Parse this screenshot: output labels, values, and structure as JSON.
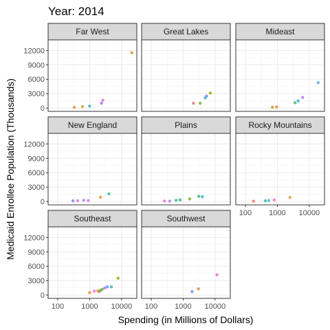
{
  "chart_data": {
    "type": "scatter",
    "title": "Year: 2014",
    "xlabel": "Spending (in Millions of Dollars)",
    "ylabel": "Medicaid Enrollee Population (Thousands)",
    "x_scale": "log10",
    "xlim": [
      50,
      30000
    ],
    "ylim": [
      -700,
      14200
    ],
    "x_ticks": [
      100,
      1000,
      10000
    ],
    "x_tick_labels": [
      "100",
      "1000",
      "10000"
    ],
    "y_ticks": [
      0,
      3000,
      6000,
      9000,
      12000
    ],
    "y_tick_labels": [
      "0",
      "3000",
      "6000",
      "9000",
      "12000"
    ],
    "grid": true,
    "legend": "none",
    "panels": [
      {
        "name": "Far West",
        "points": [
          {
            "x": 330,
            "y": 130,
            "color": "#f0883a"
          },
          {
            "x": 600,
            "y": 280,
            "color": "#d1a02a"
          },
          {
            "x": 1000,
            "y": 400,
            "color": "#36b4c7"
          },
          {
            "x": 2350,
            "y": 1000,
            "color": "#a07cf5"
          },
          {
            "x": 2600,
            "y": 1600,
            "color": "#ec6fd1"
          },
          {
            "x": 21000,
            "y": 11500,
            "color": "#dd9639"
          }
        ]
      },
      {
        "name": "Great Lakes",
        "points": [
          {
            "x": 2100,
            "y": 1000,
            "color": "#f7716f"
          },
          {
            "x": 3400,
            "y": 1000,
            "color": "#7fae2e"
          },
          {
            "x": 4900,
            "y": 2100,
            "color": "#36b4c7"
          },
          {
            "x": 5400,
            "y": 2500,
            "color": "#6f8ff5"
          },
          {
            "x": 7100,
            "y": 3100,
            "color": "#9aa81a"
          }
        ]
      },
      {
        "name": "Mideast",
        "points": [
          {
            "x": 700,
            "y": 150,
            "color": "#c99a2a"
          },
          {
            "x": 950,
            "y": 200,
            "color": "#e08a3a"
          },
          {
            "x": 3600,
            "y": 1100,
            "color": "#3ab86a"
          },
          {
            "x": 4500,
            "y": 1500,
            "color": "#36b4c7"
          },
          {
            "x": 6200,
            "y": 2200,
            "color": "#b57cf0"
          },
          {
            "x": 19000,
            "y": 5300,
            "color": "#5aa6f0"
          }
        ]
      },
      {
        "name": "New England",
        "points": [
          {
            "x": 300,
            "y": 150,
            "color": "#6f8ff5"
          },
          {
            "x": 420,
            "y": 170,
            "color": "#ec6fd1"
          },
          {
            "x": 650,
            "y": 250,
            "color": "#b57cf0"
          },
          {
            "x": 900,
            "y": 200,
            "color": "#d07ae8"
          },
          {
            "x": 2200,
            "y": 900,
            "color": "#dd9639"
          },
          {
            "x": 4000,
            "y": 1600,
            "color": "#2fbf9a"
          }
        ]
      },
      {
        "name": "Plains",
        "points": [
          {
            "x": 260,
            "y": 100,
            "color": "#ec6fd1"
          },
          {
            "x": 380,
            "y": 80,
            "color": "#b57cf0"
          },
          {
            "x": 600,
            "y": 250,
            "color": "#36b4c7"
          },
          {
            "x": 800,
            "y": 350,
            "color": "#3ab86a"
          },
          {
            "x": 1600,
            "y": 550,
            "color": "#7fae2e"
          },
          {
            "x": 3100,
            "y": 1100,
            "color": "#3ab86a"
          },
          {
            "x": 4000,
            "y": 1000,
            "color": "#36b4c7"
          }
        ]
      },
      {
        "name": "Rocky Mountains",
        "points": [
          {
            "x": 180,
            "y": 70,
            "color": "#f7716f"
          },
          {
            "x": 420,
            "y": 150,
            "color": "#2fbf9a"
          },
          {
            "x": 540,
            "y": 200,
            "color": "#5aa6f0"
          },
          {
            "x": 800,
            "y": 350,
            "color": "#ec6fd1"
          },
          {
            "x": 2500,
            "y": 850,
            "color": "#dd9639"
          }
        ]
      },
      {
        "name": "Southeast",
        "points": [
          {
            "x": 1000,
            "y": 500,
            "color": "#f0883a"
          },
          {
            "x": 1400,
            "y": 800,
            "color": "#ec6fd1"
          },
          {
            "x": 1800,
            "y": 850,
            "color": "#d1a02a"
          },
          {
            "x": 2000,
            "y": 700,
            "color": "#f7716f"
          },
          {
            "x": 2200,
            "y": 1000,
            "color": "#3ab86a"
          },
          {
            "x": 2500,
            "y": 1200,
            "color": "#7fae2e"
          },
          {
            "x": 3000,
            "y": 1500,
            "color": "#b57cf0"
          },
          {
            "x": 3600,
            "y": 1700,
            "color": "#6f8ff5"
          },
          {
            "x": 4800,
            "y": 1700,
            "color": "#36b4c7"
          },
          {
            "x": 7800,
            "y": 3500,
            "color": "#9aa81a"
          }
        ]
      },
      {
        "name": "Southwest",
        "points": [
          {
            "x": 1900,
            "y": 700,
            "color": "#6f8ff5"
          },
          {
            "x": 3000,
            "y": 1300,
            "color": "#e08a3a"
          },
          {
            "x": 11500,
            "y": 4200,
            "color": "#ec6fd1"
          }
        ]
      }
    ]
  }
}
